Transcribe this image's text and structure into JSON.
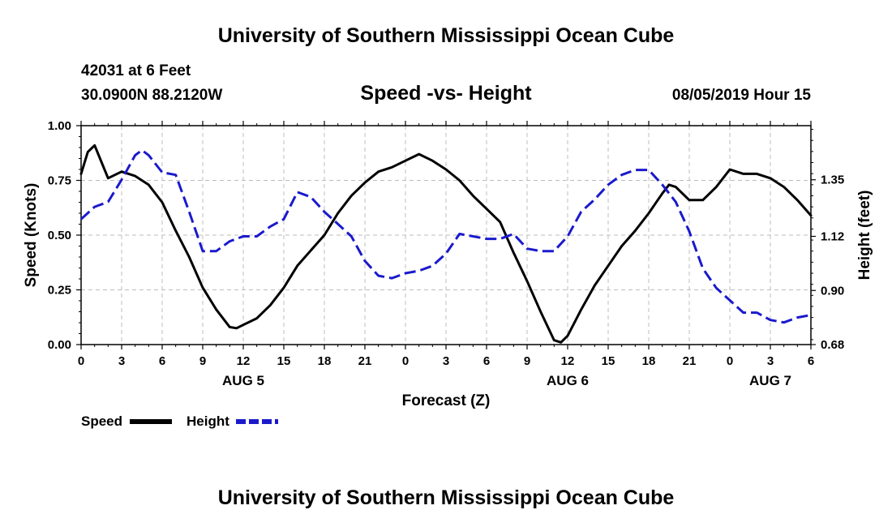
{
  "header": {
    "title": "University of Southern Mississippi Ocean Cube",
    "station": "42031 at 6 Feet",
    "location": "30.0900N 88.2120W",
    "subtitle": "Speed -vs- Height",
    "datetime": "08/05/2019 Hour 15"
  },
  "footer": {
    "title": "University of Southern Mississippi Ocean Cube"
  },
  "legend": {
    "speed_label": "Speed",
    "height_label": "Height"
  },
  "colors": {
    "speed": "#000000",
    "height": "#1a1acc",
    "grid": "#bdbdbd"
  },
  "chart_data": {
    "type": "line",
    "xlabel": "Forecast (Z)",
    "ylabel_left": "Speed (Knots)",
    "ylabel_right": "Height (feet)",
    "x_unit": "hours since 08/05/2019 00Z",
    "xlim": [
      0,
      54
    ],
    "ylim_left": [
      0,
      1.0
    ],
    "ylim_right": [
      0.68,
      1.57
    ],
    "x_ticks": [
      0,
      3,
      6,
      9,
      12,
      15,
      18,
      21,
      24,
      27,
      30,
      33,
      36,
      39,
      42,
      45,
      48,
      51,
      54
    ],
    "x_tick_labels": [
      "0",
      "3",
      "6",
      "9",
      "12",
      "15",
      "18",
      "21",
      "0",
      "3",
      "6",
      "9",
      "12",
      "15",
      "18",
      "21",
      "0",
      "3",
      "6"
    ],
    "day_labels": [
      {
        "x": 12,
        "label": "AUG 5"
      },
      {
        "x": 36,
        "label": "AUG 6"
      },
      {
        "x": 51,
        "label": "AUG 7"
      }
    ],
    "y_left_ticks": [
      0.0,
      0.25,
      0.5,
      0.75,
      1.0
    ],
    "y_left_tick_labels": [
      "0.00",
      "0.25",
      "0.50",
      "0.75",
      "1.00"
    ],
    "y_right_ticks": [
      0.68,
      0.9,
      1.12,
      1.35
    ],
    "y_right_tick_labels": [
      "0.68",
      "0.90",
      "1.12",
      "1.35"
    ],
    "grid": true,
    "legend_position": "bottom-left",
    "series": [
      {
        "name": "Speed",
        "axis": "left",
        "style": "solid",
        "x": [
          0,
          0.5,
          1,
          2,
          3,
          4,
          5,
          6,
          7,
          8,
          9,
          10,
          11,
          11.5,
          12,
          13,
          14,
          15,
          16,
          17,
          18,
          19,
          20,
          21,
          22,
          23,
          24,
          25,
          26,
          27,
          28,
          29,
          30,
          31,
          32,
          33,
          34,
          35,
          35.5,
          36,
          37,
          38,
          39,
          40,
          41,
          42,
          43,
          43.5,
          44,
          45,
          46,
          47,
          48,
          49,
          50,
          51,
          52,
          53,
          54
        ],
        "values": [
          0.78,
          0.88,
          0.91,
          0.76,
          0.79,
          0.77,
          0.73,
          0.65,
          0.52,
          0.4,
          0.26,
          0.16,
          0.08,
          0.075,
          0.09,
          0.12,
          0.18,
          0.26,
          0.36,
          0.43,
          0.5,
          0.6,
          0.68,
          0.74,
          0.79,
          0.81,
          0.84,
          0.87,
          0.84,
          0.8,
          0.75,
          0.68,
          0.62,
          0.56,
          0.42,
          0.29,
          0.15,
          0.02,
          0.01,
          0.04,
          0.16,
          0.27,
          0.36,
          0.45,
          0.52,
          0.6,
          0.69,
          0.73,
          0.72,
          0.66,
          0.66,
          0.72,
          0.8,
          0.78,
          0.78,
          0.76,
          0.72,
          0.66,
          0.59
        ]
      },
      {
        "name": "Height",
        "axis": "right",
        "style": "dashed",
        "x": [
          0,
          1,
          2,
          3,
          4,
          4.5,
          5,
          6,
          7,
          8,
          9,
          10,
          11,
          12,
          13,
          14,
          15,
          16,
          17,
          18,
          19,
          20,
          21,
          22,
          23,
          24,
          25,
          26,
          27,
          28,
          29,
          30,
          31,
          32,
          33,
          34,
          35,
          36,
          37,
          38,
          39,
          40,
          41,
          42,
          43,
          44,
          45,
          46,
          47,
          48,
          49,
          50,
          51,
          52,
          53,
          54
        ],
        "values": [
          1.19,
          1.24,
          1.26,
          1.35,
          1.45,
          1.47,
          1.45,
          1.38,
          1.37,
          1.22,
          1.06,
          1.06,
          1.1,
          1.12,
          1.12,
          1.16,
          1.19,
          1.3,
          1.28,
          1.22,
          1.17,
          1.12,
          1.02,
          0.96,
          0.95,
          0.97,
          0.98,
          1.0,
          1.05,
          1.13,
          1.12,
          1.11,
          1.11,
          1.13,
          1.07,
          1.06,
          1.06,
          1.12,
          1.22,
          1.27,
          1.33,
          1.37,
          1.39,
          1.39,
          1.33,
          1.26,
          1.14,
          0.99,
          0.91,
          0.86,
          0.81,
          0.81,
          0.78,
          0.77,
          0.79,
          0.8
        ]
      }
    ]
  }
}
